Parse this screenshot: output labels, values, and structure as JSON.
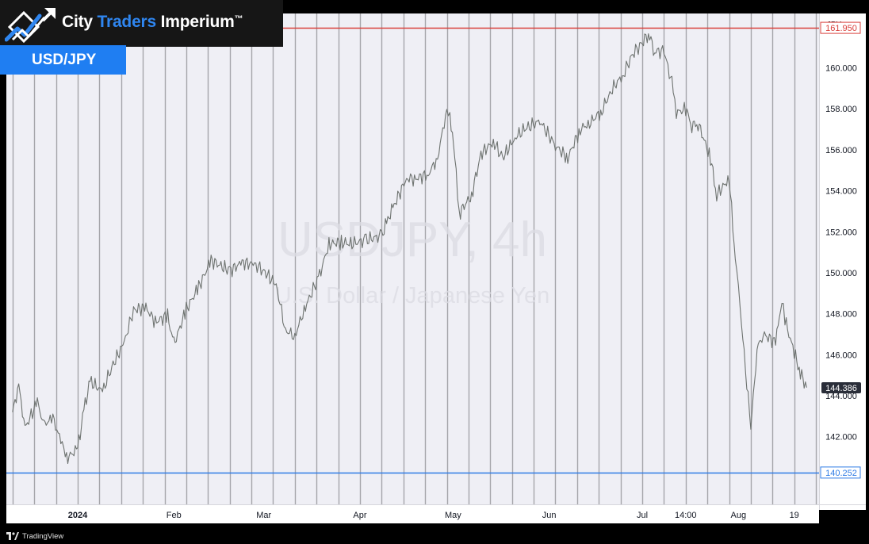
{
  "brand": {
    "name_part1": "City ",
    "name_part2": "Traders",
    "name_part3": " Imperium",
    "trademark": "™",
    "logo_icon": "rising-arrow-chart-icon"
  },
  "symbol_label": "USD/JPY",
  "footer": {
    "text": "TradingView",
    "icon": "tradingview-logo-icon"
  },
  "colors": {
    "background": "#000000",
    "plot": "#efeff5",
    "grid": "#a5a5aa",
    "price_line": "#6e7370",
    "resistance": "#d9403c",
    "support": "#2f7be5",
    "brand_blue": "#1f7ef2"
  },
  "chart_data": {
    "type": "line",
    "title": "",
    "watermark": {
      "symbol": "USDJPY, 4h",
      "description": "U.S. Dollar / Japanese Yen"
    },
    "axis_currency": "JPY",
    "ylim": [
      138.7,
      162.65
    ],
    "xlim": [
      "2023-12-09",
      "2024-08-27"
    ],
    "y_ticks": [
      142,
      144,
      146,
      148,
      150,
      152,
      154,
      156,
      158,
      160
    ],
    "y_tick_labels": [
      "142.000",
      "144.000",
      "146.000",
      "148.000",
      "150.000",
      "152.000",
      "154.000",
      "156.000",
      "158.000",
      "160.000"
    ],
    "x_ticks": [
      {
        "date": "2024-01-01",
        "label": "2024",
        "bold": true
      },
      {
        "date": "2024-02-01",
        "label": "Feb"
      },
      {
        "date": "2024-03-01",
        "label": "Mar"
      },
      {
        "date": "2024-04-01",
        "label": "Apr"
      },
      {
        "date": "2024-05-01",
        "label": "May"
      },
      {
        "date": "2024-06-01",
        "label": "Jun"
      },
      {
        "date": "2024-07-01",
        "label": "Jul"
      },
      {
        "date": "2024-07-15",
        "label": "14:00"
      },
      {
        "date": "2024-08-01",
        "label": "Aug"
      },
      {
        "date": "2024-08-19",
        "label": "19"
      }
    ],
    "grid_dates": [
      "2023-12-11",
      "2023-12-18",
      "2023-12-25",
      "2024-01-01",
      "2024-01-08",
      "2024-01-15",
      "2024-01-22",
      "2024-01-29",
      "2024-02-05",
      "2024-02-12",
      "2024-02-19",
      "2024-02-26",
      "2024-03-04",
      "2024-03-11",
      "2024-03-18",
      "2024-03-25",
      "2024-04-01",
      "2024-04-08",
      "2024-04-15",
      "2024-04-22",
      "2024-04-29",
      "2024-05-06",
      "2024-05-13",
      "2024-05-20",
      "2024-05-27",
      "2024-06-03",
      "2024-06-10",
      "2024-06-17",
      "2024-06-24",
      "2024-07-01",
      "2024-07-08",
      "2024-07-15",
      "2024-07-22",
      "2024-07-29",
      "2024-08-05",
      "2024-08-12",
      "2024-08-19",
      "2024-08-26"
    ],
    "horizontal_levels": [
      {
        "value": 161.95,
        "label": "161.950",
        "color": "#d9403c"
      },
      {
        "value": 140.252,
        "label": "140.252",
        "color": "#2f7be5"
      }
    ],
    "last_price": {
      "value": 144.386,
      "label": "144.386"
    },
    "series": [
      {
        "x": [
          "2023-12-11",
          "2023-12-13",
          "2023-12-15",
          "2023-12-19",
          "2023-12-21",
          "2023-12-24",
          "2023-12-27",
          "2023-12-28",
          "2024-01-01",
          "2024-01-03",
          "2024-01-05",
          "2024-01-09",
          "2024-01-12",
          "2024-01-16",
          "2024-01-19",
          "2024-01-23",
          "2024-01-26",
          "2024-01-30",
          "2024-02-01",
          "2024-02-05",
          "2024-02-09",
          "2024-02-13",
          "2024-02-19",
          "2024-02-23",
          "2024-02-27",
          "2024-03-01",
          "2024-03-05",
          "2024-03-08",
          "2024-03-11",
          "2024-03-14",
          "2024-03-19",
          "2024-03-22",
          "2024-03-26",
          "2024-03-29",
          "2024-04-03",
          "2024-04-08",
          "2024-04-10",
          "2024-04-12",
          "2024-04-16",
          "2024-04-19",
          "2024-04-23",
          "2024-04-26",
          "2024-04-29",
          "2024-04-30",
          "2024-05-02",
          "2024-05-03",
          "2024-05-07",
          "2024-05-10",
          "2024-05-14",
          "2024-05-17",
          "2024-05-21",
          "2024-05-24",
          "2024-05-29",
          "2024-06-03",
          "2024-06-07",
          "2024-06-11",
          "2024-06-14",
          "2024-06-18",
          "2024-06-21",
          "2024-06-25",
          "2024-06-28",
          "2024-07-01",
          "2024-07-03",
          "2024-07-05",
          "2024-07-08",
          "2024-07-11",
          "2024-07-12",
          "2024-07-15",
          "2024-07-17",
          "2024-07-19",
          "2024-07-23",
          "2024-07-25",
          "2024-07-29",
          "2024-07-31",
          "2024-08-01",
          "2024-08-02",
          "2024-08-05",
          "2024-08-07",
          "2024-08-09",
          "2024-08-13",
          "2024-08-15",
          "2024-08-16",
          "2024-08-19",
          "2024-08-21",
          "2024-08-23"
        ],
        "y": [
          143.2,
          144.5,
          142.4,
          143.7,
          142.6,
          142.9,
          141.6,
          140.9,
          141.4,
          143.3,
          144.7,
          144.2,
          145.4,
          146.6,
          148.2,
          148.3,
          147.6,
          147.9,
          146.5,
          148.2,
          149.3,
          150.6,
          150.1,
          150.5,
          150.4,
          150.1,
          149.4,
          147.2,
          146.9,
          148.2,
          149.9,
          151.4,
          151.5,
          151.4,
          151.6,
          151.8,
          152.6,
          153.3,
          154.6,
          154.6,
          154.8,
          155.6,
          158.0,
          157.8,
          155.0,
          152.9,
          153.8,
          155.8,
          156.4,
          155.6,
          156.6,
          157.0,
          157.4,
          156.2,
          155.6,
          157.0,
          157.3,
          157.9,
          158.9,
          159.7,
          160.7,
          161.2,
          161.7,
          160.8,
          160.8,
          159.0,
          157.8,
          158.0,
          157.2,
          157.3,
          155.6,
          153.8,
          154.6,
          150.8,
          149.5,
          147.5,
          142.4,
          146.3,
          147.0,
          146.6,
          148.7,
          147.7,
          146.1,
          145.1,
          144.4
        ]
      }
    ]
  }
}
